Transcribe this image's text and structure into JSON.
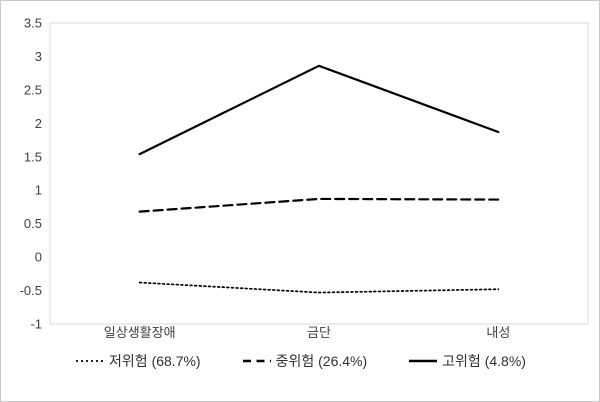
{
  "chart_data": {
    "type": "line",
    "title": "",
    "xlabel": "",
    "ylabel": "",
    "categories": [
      "일상생활장애",
      "금단",
      "내성"
    ],
    "series": [
      {
        "name": "저위험 (68.7%)",
        "style": "dotted",
        "values": [
          -0.38,
          -0.53,
          -0.48
        ]
      },
      {
        "name": "중위험 (26.4%)",
        "style": "dashed",
        "values": [
          0.68,
          0.87,
          0.86
        ]
      },
      {
        "name": "고위험 (4.8%)",
        "style": "solid",
        "values": [
          1.54,
          2.86,
          1.87
        ]
      }
    ],
    "ylim": [
      -1,
      3.5
    ],
    "ytick_step": 0.5,
    "ytick_labels": [
      "3.5",
      "3",
      "2.5",
      "2",
      "1.5",
      "1",
      "0.5",
      "0",
      "-0.5",
      "-1"
    ],
    "grid": false,
    "legend_position": "bottom",
    "colors": {
      "line": "#000000",
      "plot_border": "#d9d9d9",
      "tick_text": "#404040",
      "background": "#ffffff"
    }
  }
}
